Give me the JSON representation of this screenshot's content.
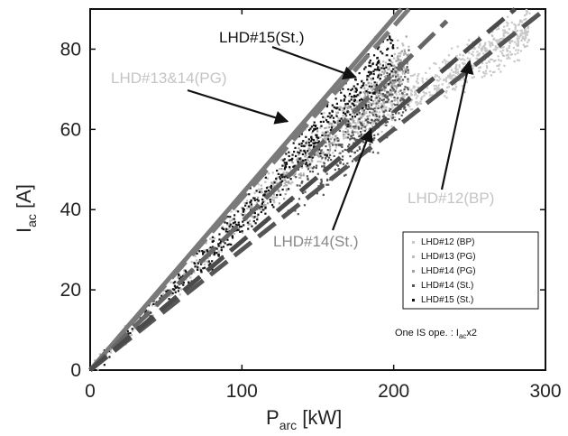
{
  "chart_data": {
    "type": "scatter",
    "xlabel": {
      "main": "P",
      "sub": "arc",
      "unit": " [kW]"
    },
    "ylabel": {
      "main": "I",
      "sub": "ac",
      "unit": " [A]"
    },
    "xlim": [
      0,
      300
    ],
    "ylim": [
      0,
      90
    ],
    "xticks": [
      "0",
      "100",
      "200",
      "300"
    ],
    "yticks": [
      "0",
      "20",
      "40",
      "60",
      "80"
    ],
    "series": [
      {
        "name": "LHD#12 (BP)",
        "color": "#c8c8c8",
        "x_range": [
          150,
          290
        ],
        "trend": [
          [
            0,
            0
          ],
          [
            150,
            55
          ],
          [
            290,
            85
          ]
        ]
      },
      {
        "name": "LHD#13 (PG)",
        "color": "#bdbdbd",
        "x_range": [
          0,
          210
        ],
        "trend": [
          [
            0,
            0
          ],
          [
            100,
            38
          ],
          [
            210,
            78
          ]
        ]
      },
      {
        "name": "LHD#14 (PG)",
        "color": "#a0a0a0",
        "x_range": [
          100,
          210
        ],
        "trend": [
          [
            0,
            0
          ],
          [
            100,
            37
          ],
          [
            210,
            77
          ]
        ]
      },
      {
        "name": "LHD#14 (St.)",
        "color": "#555555",
        "x_range": [
          130,
          210
        ],
        "trend": [
          [
            0,
            0
          ],
          [
            130,
            42
          ],
          [
            210,
            72
          ]
        ]
      },
      {
        "name": "LHD#15 (St.)",
        "color": "#111111",
        "x_range": [
          0,
          200
        ],
        "trend": [
          [
            0,
            0
          ],
          [
            100,
            37
          ],
          [
            200,
            80
          ]
        ]
      }
    ],
    "fit_lines": [
      {
        "color": "#7a7a7a",
        "dash": "long",
        "points": [
          [
            0,
            0
          ],
          [
            210,
            90
          ]
        ]
      },
      {
        "color": "#7a7a7a",
        "dash": "solid",
        "points": [
          [
            0,
            0
          ],
          [
            205,
            90
          ]
        ]
      },
      {
        "color": "#666666",
        "dash": "long",
        "points": [
          [
            0,
            0
          ],
          [
            235,
            87
          ]
        ]
      },
      {
        "color": "#555555",
        "dash": "long",
        "points": [
          [
            0,
            0
          ],
          [
            300,
            90
          ]
        ]
      },
      {
        "color": "#4a4a4a",
        "dash": "long",
        "points": [
          [
            0,
            0
          ],
          [
            280,
            90
          ]
        ]
      }
    ],
    "annotations": [
      {
        "text": "LHD#15(St.)",
        "color": "#111111",
        "arrow_to": [
          175,
          73
        ]
      },
      {
        "text": "LHD#13&14(PG)",
        "color": "#c4c4c4",
        "arrow_to": [
          130,
          62
        ]
      },
      {
        "text": "LHD#14(St.)",
        "color": "#888888",
        "arrow_to": [
          185,
          60
        ]
      },
      {
        "text": "LHD#12(BP)",
        "color": "#c4c4c4",
        "arrow_to": [
          250,
          77
        ]
      }
    ],
    "legend_position": "bottom-right",
    "note": {
      "prefix": "One IS ope. : I",
      "sub": "ac",
      "suffix": "x2"
    }
  }
}
